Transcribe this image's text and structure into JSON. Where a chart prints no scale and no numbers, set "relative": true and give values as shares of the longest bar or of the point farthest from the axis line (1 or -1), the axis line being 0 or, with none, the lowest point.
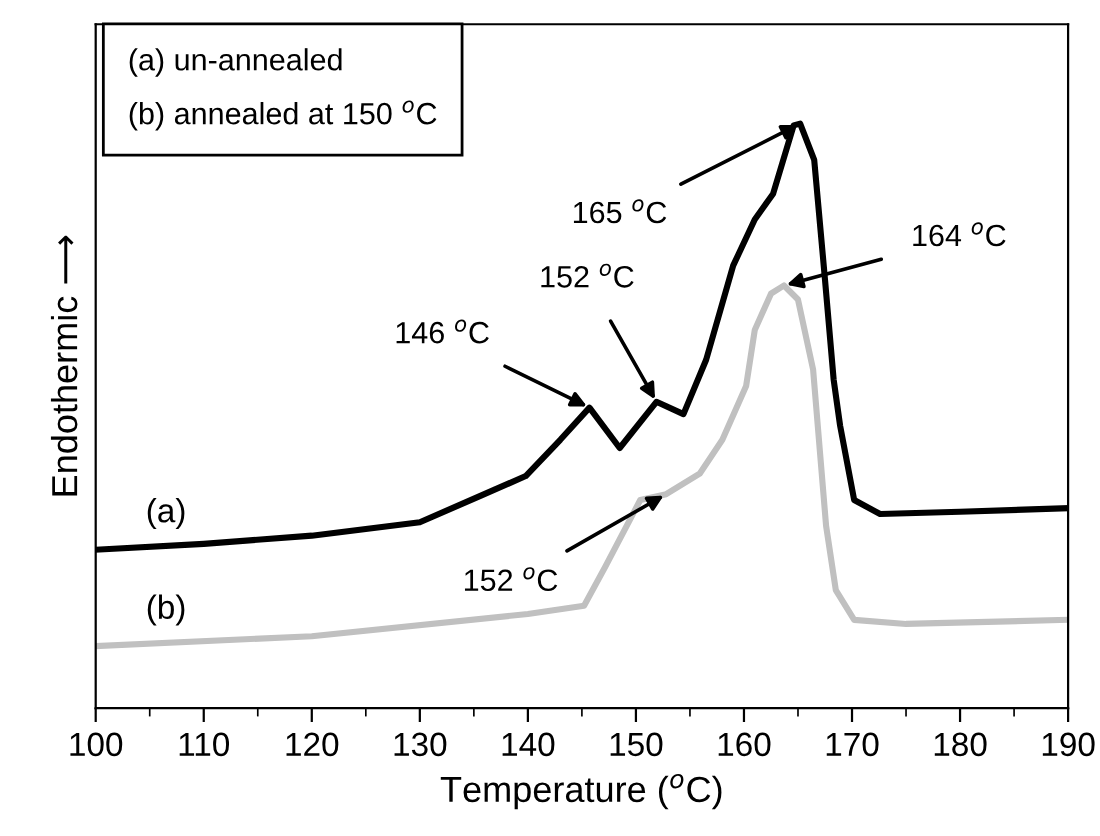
{
  "chart_data": {
    "type": "line",
    "relative": true,
    "xlabel": "Temperature ($^{o}$C)",
    "ylabel": "Endothermic ⟶",
    "xlim": [
      100,
      190
    ],
    "xticks": [
      100,
      110,
      120,
      130,
      140,
      150,
      160,
      170,
      180,
      190
    ],
    "grid": false,
    "legend": false,
    "marker": "none",
    "line_style": "solid",
    "series": [
      {
        "name": "(a)",
        "color": "#000000",
        "x": [
          100,
          110,
          120,
          130,
          135.6,
          139.8,
          143,
          145.7,
          148.5,
          151.9,
          154.4,
          156.5,
          159,
          161,
          162.7,
          164.6,
          165.2,
          166.5,
          167.5,
          168.3,
          168.9,
          170.2,
          172.6,
          180,
          190
        ],
        "values": [
          0.271,
          0.281,
          0.295,
          0.318,
          0.363,
          0.397,
          0.459,
          0.514,
          0.445,
          0.524,
          0.503,
          0.596,
          0.757,
          0.836,
          0.88,
          0.997,
          1.0,
          0.938,
          0.733,
          0.562,
          0.483,
          0.356,
          0.332,
          0.336,
          0.342
        ]
      },
      {
        "name": "(b)",
        "color": "#c0c0c0",
        "x": [
          100,
          120,
          140,
          145.2,
          147.2,
          150.4,
          152.8,
          155.9,
          158,
          160.2,
          161,
          162.5,
          163.7,
          165,
          166.4,
          167.6,
          168.5,
          170.2,
          175,
          190
        ],
        "values": [
          0.106,
          0.123,
          0.161,
          0.175,
          0.243,
          0.356,
          0.366,
          0.401,
          0.459,
          0.551,
          0.647,
          0.709,
          0.723,
          0.699,
          0.579,
          0.312,
          0.202,
          0.151,
          0.144,
          0.151
        ]
      }
    ],
    "annotations": [
      "(a) un-annealed\n(b) annealed at 150 $^{o}$C",
      {
        "text": "146 $^{o}$C",
        "x": 145.7,
        "y": 0.514
      },
      {
        "text": "152 $^{o}$C",
        "x": 151.9,
        "y": 0.524
      },
      {
        "text": "165 $^{o}$C",
        "x": 165.2,
        "y": 1.0
      },
      {
        "text": "164 $^{o}$C",
        "x": 163.7,
        "y": 0.723
      },
      {
        "text": "152 $^{o}$C",
        "x": 152.8,
        "y": 0.366
      }
    ]
  }
}
